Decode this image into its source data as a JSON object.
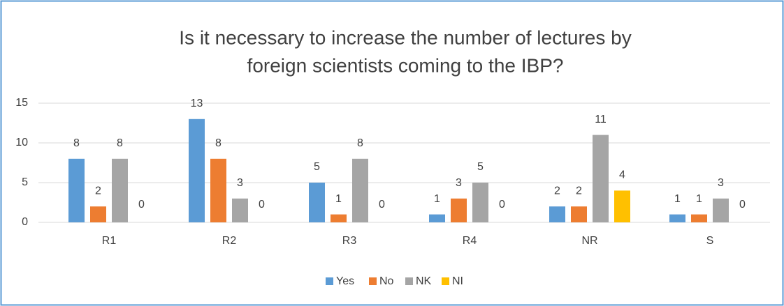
{
  "chart_data": {
    "type": "bar",
    "title": [
      "Is it necessary to increase the number of lectures by",
      "foreign scientists coming to the IBP?"
    ],
    "categories": [
      "R1",
      "R2",
      "R3",
      "R4",
      "NR",
      "S"
    ],
    "series": [
      {
        "name": "Yes",
        "color": "#5b9bd5",
        "values": [
          8,
          13,
          5,
          1,
          2,
          1
        ]
      },
      {
        "name": "No",
        "color": "#ed7d31",
        "values": [
          2,
          8,
          1,
          3,
          2,
          1
        ]
      },
      {
        "name": "NK",
        "color": "#a5a5a5",
        "values": [
          8,
          3,
          8,
          5,
          11,
          3
        ]
      },
      {
        "name": "NI",
        "color": "#ffc000",
        "values": [
          0,
          0,
          0,
          0,
          4,
          0
        ]
      }
    ],
    "ylim": [
      0,
      15
    ],
    "yticks": [
      0,
      5,
      10,
      15
    ],
    "grid": true,
    "legend": "bottom"
  }
}
